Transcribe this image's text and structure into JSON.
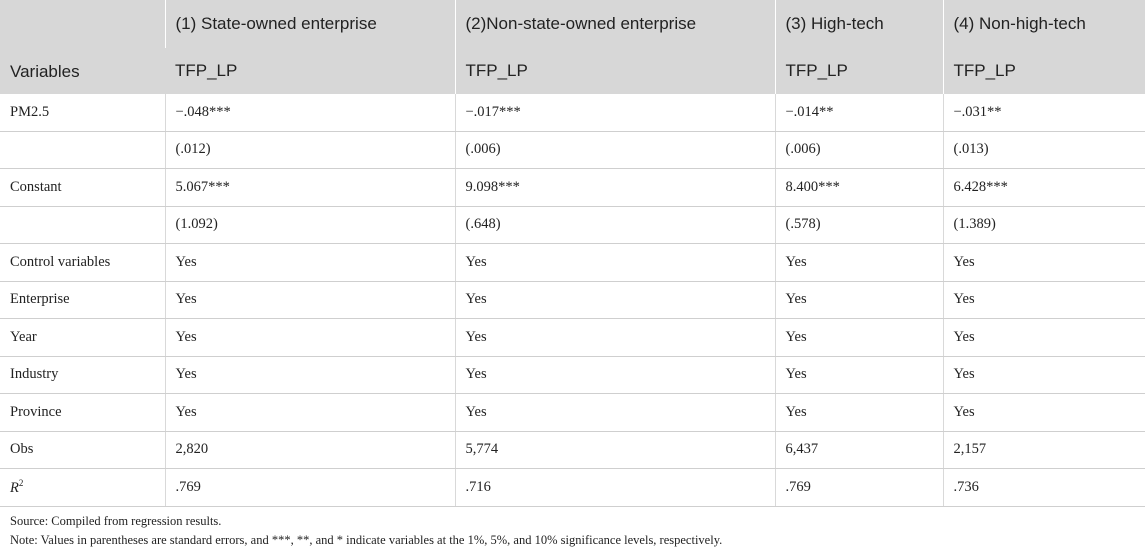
{
  "header": {
    "variables_label": "Variables",
    "columns": [
      {
        "group": "(1) State-owned enterprise",
        "dep": "TFP_LP"
      },
      {
        "group": "(2)Non-state-owned enterprise",
        "dep": "TFP_LP"
      },
      {
        "group": "(3) High-tech",
        "dep": "TFP_LP"
      },
      {
        "group": "(4) Non-high-tech",
        "dep": "TFP_LP"
      }
    ]
  },
  "rows": [
    {
      "label": "PM2.5",
      "values": [
        "−.048***",
        "−.017***",
        "−.014**",
        "−.031**"
      ]
    },
    {
      "label": "",
      "values": [
        "(.012)",
        "(.006)",
        "(.006)",
        "(.013)"
      ]
    },
    {
      "label": "Constant",
      "values": [
        "5.067***",
        "9.098***",
        "8.400***",
        "6.428***"
      ]
    },
    {
      "label": "",
      "values": [
        "(1.092)",
        "(.648)",
        "(.578)",
        "(1.389)"
      ]
    },
    {
      "label": "Control variables",
      "values": [
        "Yes",
        "Yes",
        "Yes",
        "Yes"
      ]
    },
    {
      "label": "Enterprise",
      "values": [
        "Yes",
        "Yes",
        "Yes",
        "Yes"
      ]
    },
    {
      "label": "Year",
      "values": [
        "Yes",
        "Yes",
        "Yes",
        "Yes"
      ]
    },
    {
      "label": "Industry",
      "values": [
        "Yes",
        "Yes",
        "Yes",
        "Yes"
      ]
    },
    {
      "label": "Province",
      "values": [
        "Yes",
        "Yes",
        "Yes",
        "Yes"
      ]
    },
    {
      "label": "Obs",
      "values": [
        "2,820",
        "5,774",
        "6,437",
        "2,157"
      ]
    },
    {
      "label_italic": "R",
      "label_sup": "2",
      "values": [
        ".769",
        ".716",
        ".769",
        ".736"
      ]
    }
  ],
  "notes": {
    "source": "Source: Compiled from regression results.",
    "note": "Note: Values in parentheses are standard errors, and ***, **, and * indicate variables at the 1%, 5%, and 10% significance levels, respectively."
  },
  "colors": {
    "header_bg": "#d7d7d7",
    "grid": "#cfcfcf"
  }
}
